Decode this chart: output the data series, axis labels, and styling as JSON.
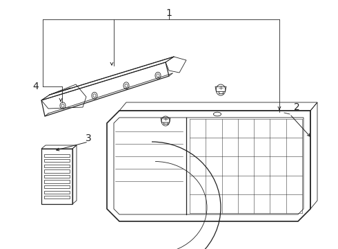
{
  "background_color": "#ffffff",
  "line_color": "#222222",
  "fig_width": 4.9,
  "fig_height": 3.6,
  "dpi": 100,
  "label_fontsize": 10
}
